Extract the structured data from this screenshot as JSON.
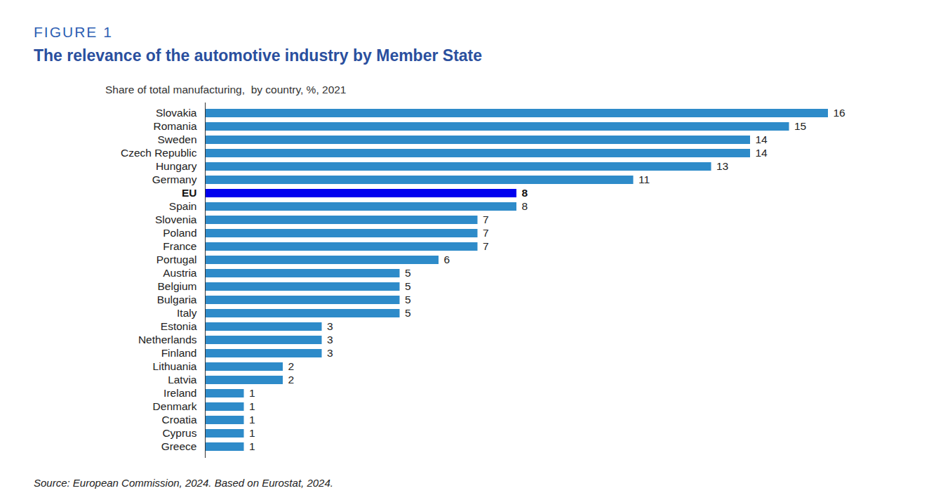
{
  "chart_data": {
    "type": "bar",
    "figure_number": "FIGURE 1",
    "title": "The relevance of the automotive industry by Member State",
    "subtitle": "Share of total manufacturing,  by country, %, 2021",
    "source": "Source: European Commission, 2024. Based on Eurostat, 2024.",
    "orientation": "horizontal",
    "categories": [
      "Slovakia",
      "Romania",
      "Sweden",
      "Czech Republic",
      "Hungary",
      "Germany",
      "EU",
      "Spain",
      "Slovenia",
      "Poland",
      "France",
      "Portugal",
      "Austria",
      "Belgium",
      "Bulgaria",
      "Italy",
      "Estonia",
      "Netherlands",
      "Finland",
      "Lithuania",
      "Latvia",
      "Ireland",
      "Denmark",
      "Croatia",
      "Cyprus",
      "Greece"
    ],
    "values": [
      16,
      15,
      14,
      14,
      13,
      11,
      8,
      8,
      7,
      7,
      7,
      6,
      5,
      5,
      5,
      5,
      3,
      3,
      3,
      2,
      2,
      1,
      1,
      1,
      1,
      1
    ],
    "colors": [
      "#2e8bc9",
      "#2e8bc9",
      "#2e8bc9",
      "#2e8bc9",
      "#2e8bc9",
      "#2e8bc9",
      "#0000ee",
      "#2e8bc9",
      "#2e8bc9",
      "#2e8bc9",
      "#2e8bc9",
      "#2e8bc9",
      "#2e8bc9",
      "#2e8bc9",
      "#2e8bc9",
      "#2e8bc9",
      "#2e8bc9",
      "#2e8bc9",
      "#2e8bc9",
      "#2e8bc9",
      "#2e8bc9",
      "#2e8bc9",
      "#2e8bc9",
      "#2e8bc9",
      "#2e8bc9",
      "#2e8bc9"
    ],
    "xlim": [
      0,
      16
    ],
    "tick_labels": "y",
    "data_labels": true,
    "grid": false
  }
}
